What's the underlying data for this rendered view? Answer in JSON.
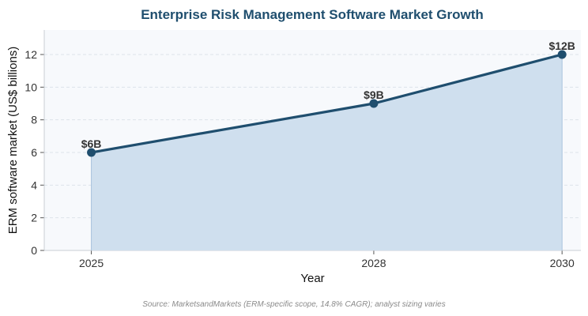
{
  "chart_data": {
    "type": "area",
    "title": "Enterprise Risk Management Software Market Growth",
    "xlabel": "Year",
    "ylabel": "ERM software market (US$ billions)",
    "x": [
      2025,
      2028,
      2030
    ],
    "xlim": [
      2024.5,
      2030.2
    ],
    "ylim": [
      0,
      13.5
    ],
    "yticks": [
      0,
      2,
      4,
      6,
      8,
      10,
      12
    ],
    "series": [
      {
        "values": [
          6,
          9,
          12
        ],
        "labels": [
          "$6B",
          "$9B",
          "$12B"
        ]
      }
    ],
    "grid": "horizontal-dashed",
    "legend": "none",
    "source": "Source: MarketsandMarkets (ERM-specific scope, 14.8% CAGR); analyst sizing varies",
    "colors": {
      "line": "#1f4e6e",
      "fill": "#cfdfee",
      "plot_bg": "#f7f9fc",
      "title": "#1f4e6e"
    }
  }
}
